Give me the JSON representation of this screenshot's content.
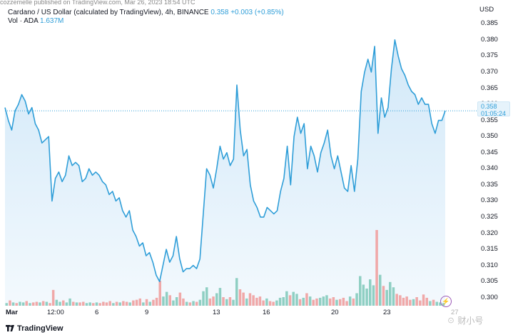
{
  "header": {
    "published_line": "cozzemelle published on TradingView.com, Mar 26, 2023 18:54 UTC",
    "symbol_text": "Cardano / US Dollar (calculated by TradingView), 4h, BINANCE",
    "last_price": "0.358",
    "change": "+0.003 (+0.85%)",
    "vol_label": "Vol · ADA",
    "vol_value": "1.637M"
  },
  "price_axis": {
    "currency": "USD",
    "ticks": [
      "0.385",
      "0.380",
      "0.375",
      "0.370",
      "0.365",
      "0.360",
      "0.355",
      "0.350",
      "0.345",
      "0.340",
      "0.335",
      "0.330",
      "0.325",
      "0.320",
      "0.315",
      "0.310",
      "0.305",
      "0.300"
    ],
    "current_price": "0.358",
    "countdown": "01:05:24"
  },
  "time_axis": {
    "ticks": [
      "Mar",
      "12:00",
      "6",
      "9",
      "13",
      "16",
      "20",
      "23",
      "27"
    ]
  },
  "branding": {
    "logo_text": "TradingView",
    "watermark": "☉ 财小号"
  },
  "colors": {
    "line": "#2f9ed8",
    "area_top": "#cfe7f8",
    "vol_up": "#8fcfc3",
    "vol_down": "#f0a8a8"
  },
  "chart_data": {
    "type": "area",
    "ylim": [
      0.2975,
      0.3875
    ],
    "xlim": [
      0,
      171
    ],
    "y": [
      0.359,
      0.355,
      0.352,
      0.358,
      0.36,
      0.363,
      0.361,
      0.357,
      0.359,
      0.354,
      0.352,
      0.348,
      0.349,
      0.35,
      0.33,
      0.337,
      0.339,
      0.336,
      0.338,
      0.344,
      0.341,
      0.342,
      0.341,
      0.336,
      0.337,
      0.34,
      0.338,
      0.339,
      0.338,
      0.336,
      0.335,
      0.332,
      0.333,
      0.33,
      0.331,
      0.327,
      0.325,
      0.327,
      0.321,
      0.319,
      0.316,
      0.317,
      0.313,
      0.314,
      0.311,
      0.307,
      0.305,
      0.31,
      0.315,
      0.311,
      0.313,
      0.319,
      0.312,
      0.308,
      0.309,
      0.309,
      0.31,
      0.309,
      0.312,
      0.326,
      0.34,
      0.338,
      0.334,
      0.34,
      0.347,
      0.343,
      0.345,
      0.341,
      0.343,
      0.366,
      0.352,
      0.344,
      0.346,
      0.335,
      0.33,
      0.328,
      0.325,
      0.325,
      0.328,
      0.327,
      0.326,
      0.327,
      0.333,
      0.337,
      0.347,
      0.335,
      0.35,
      0.356,
      0.351,
      0.354,
      0.34,
      0.347,
      0.344,
      0.339,
      0.345,
      0.348,
      0.352,
      0.344,
      0.34,
      0.344,
      0.339,
      0.334,
      0.333,
      0.341,
      0.333,
      0.343,
      0.364,
      0.37,
      0.374,
      0.37,
      0.378,
      0.351,
      0.362,
      0.356,
      0.359,
      0.371,
      0.38,
      0.375,
      0.371,
      0.369,
      0.366,
      0.364,
      0.363,
      0.36,
      0.362,
      0.36,
      0.36,
      0.354,
      0.351,
      0.355,
      0.355,
      0.358
    ],
    "volume": [
      {
        "v": 0.4,
        "up": true
      },
      {
        "v": 0.8,
        "up": false
      },
      {
        "v": 0.5,
        "up": true
      },
      {
        "v": 0.4,
        "up": false
      },
      {
        "v": 0.6,
        "up": true
      },
      {
        "v": 0.5,
        "up": true
      },
      {
        "v": 0.7,
        "up": false
      },
      {
        "v": 0.4,
        "up": true
      },
      {
        "v": 0.5,
        "up": false
      },
      {
        "v": 0.6,
        "up": false
      },
      {
        "v": 0.5,
        "up": true
      },
      {
        "v": 0.7,
        "up": false
      },
      {
        "v": 0.6,
        "up": true
      },
      {
        "v": 0.4,
        "up": false
      },
      {
        "v": 2.4,
        "up": false
      },
      {
        "v": 0.9,
        "up": true
      },
      {
        "v": 0.6,
        "up": true
      },
      {
        "v": 0.8,
        "up": false
      },
      {
        "v": 0.5,
        "up": true
      },
      {
        "v": 1.1,
        "up": true
      },
      {
        "v": 0.6,
        "up": false
      },
      {
        "v": 0.5,
        "up": true
      },
      {
        "v": 0.5,
        "up": false
      },
      {
        "v": 0.6,
        "up": false
      },
      {
        "v": 0.4,
        "up": true
      },
      {
        "v": 0.5,
        "up": true
      },
      {
        "v": 0.4,
        "up": false
      },
      {
        "v": 0.5,
        "up": true
      },
      {
        "v": 0.4,
        "up": false
      },
      {
        "v": 0.6,
        "up": false
      },
      {
        "v": 0.5,
        "up": false
      },
      {
        "v": 0.7,
        "up": false
      },
      {
        "v": 0.4,
        "up": true
      },
      {
        "v": 0.6,
        "up": false
      },
      {
        "v": 0.5,
        "up": true
      },
      {
        "v": 0.7,
        "up": false
      },
      {
        "v": 0.6,
        "up": false
      },
      {
        "v": 0.5,
        "up": true
      },
      {
        "v": 0.8,
        "up": false
      },
      {
        "v": 0.9,
        "up": false
      },
      {
        "v": 1.1,
        "up": false
      },
      {
        "v": 0.5,
        "up": true
      },
      {
        "v": 1.0,
        "up": false
      },
      {
        "v": 0.6,
        "up": true
      },
      {
        "v": 0.9,
        "up": false
      },
      {
        "v": 1.2,
        "up": false
      },
      {
        "v": 3.8,
        "up": false
      },
      {
        "v": 1.4,
        "up": true
      },
      {
        "v": 2.1,
        "up": true
      },
      {
        "v": 1.6,
        "up": false
      },
      {
        "v": 0.8,
        "up": true
      },
      {
        "v": 1.3,
        "up": true
      },
      {
        "v": 2.0,
        "up": false
      },
      {
        "v": 1.1,
        "up": false
      },
      {
        "v": 0.6,
        "up": true
      },
      {
        "v": 0.5,
        "up": false
      },
      {
        "v": 0.7,
        "up": true
      },
      {
        "v": 0.6,
        "up": false
      },
      {
        "v": 0.9,
        "up": true
      },
      {
        "v": 2.2,
        "up": true
      },
      {
        "v": 2.8,
        "up": true
      },
      {
        "v": 1.1,
        "up": false
      },
      {
        "v": 1.4,
        "up": false
      },
      {
        "v": 1.9,
        "up": true
      },
      {
        "v": 2.7,
        "up": true
      },
      {
        "v": 1.3,
        "up": false
      },
      {
        "v": 1.0,
        "up": true
      },
      {
        "v": 1.3,
        "up": false
      },
      {
        "v": 0.9,
        "up": true
      },
      {
        "v": 4.2,
        "up": true
      },
      {
        "v": 2.5,
        "up": false
      },
      {
        "v": 2.0,
        "up": false
      },
      {
        "v": 1.1,
        "up": true
      },
      {
        "v": 1.9,
        "up": false
      },
      {
        "v": 1.6,
        "up": false
      },
      {
        "v": 1.2,
        "up": false
      },
      {
        "v": 1.4,
        "up": false
      },
      {
        "v": 0.8,
        "up": false
      },
      {
        "v": 1.1,
        "up": true
      },
      {
        "v": 0.7,
        "up": false
      },
      {
        "v": 0.6,
        "up": false
      },
      {
        "v": 0.8,
        "up": true
      },
      {
        "v": 1.2,
        "up": true
      },
      {
        "v": 1.3,
        "up": true
      },
      {
        "v": 2.2,
        "up": true
      },
      {
        "v": 1.6,
        "up": false
      },
      {
        "v": 2.1,
        "up": true
      },
      {
        "v": 1.8,
        "up": true
      },
      {
        "v": 1.0,
        "up": false
      },
      {
        "v": 1.2,
        "up": true
      },
      {
        "v": 1.9,
        "up": false
      },
      {
        "v": 1.4,
        "up": true
      },
      {
        "v": 0.9,
        "up": false
      },
      {
        "v": 1.1,
        "up": false
      },
      {
        "v": 1.2,
        "up": true
      },
      {
        "v": 1.4,
        "up": true
      },
      {
        "v": 1.6,
        "up": true
      },
      {
        "v": 1.1,
        "up": false
      },
      {
        "v": 1.3,
        "up": false
      },
      {
        "v": 0.9,
        "up": true
      },
      {
        "v": 1.0,
        "up": false
      },
      {
        "v": 1.2,
        "up": false
      },
      {
        "v": 0.7,
        "up": false
      },
      {
        "v": 1.4,
        "up": true
      },
      {
        "v": 1.1,
        "up": false
      },
      {
        "v": 1.9,
        "up": true
      },
      {
        "v": 4.5,
        "up": true
      },
      {
        "v": 3.2,
        "up": true
      },
      {
        "v": 2.6,
        "up": true
      },
      {
        "v": 4.0,
        "up": true
      },
      {
        "v": 3.1,
        "up": true
      },
      {
        "v": 11.5,
        "up": false
      },
      {
        "v": 4.7,
        "up": true
      },
      {
        "v": 3.0,
        "up": false
      },
      {
        "v": 2.4,
        "up": true
      },
      {
        "v": 3.6,
        "up": true
      },
      {
        "v": 2.8,
        "up": true
      },
      {
        "v": 1.8,
        "up": false
      },
      {
        "v": 1.6,
        "up": false
      },
      {
        "v": 1.2,
        "up": false
      },
      {
        "v": 1.4,
        "up": false
      },
      {
        "v": 0.9,
        "up": false
      },
      {
        "v": 1.0,
        "up": true
      },
      {
        "v": 1.3,
        "up": false
      },
      {
        "v": 0.8,
        "up": false
      },
      {
        "v": 1.7,
        "up": false
      },
      {
        "v": 1.2,
        "up": false
      },
      {
        "v": 0.7,
        "up": true
      },
      {
        "v": 0.9,
        "up": false
      },
      {
        "v": 0.6,
        "up": true
      },
      {
        "v": 0.5,
        "up": true
      },
      {
        "v": 0.4,
        "up": true
      }
    ]
  }
}
